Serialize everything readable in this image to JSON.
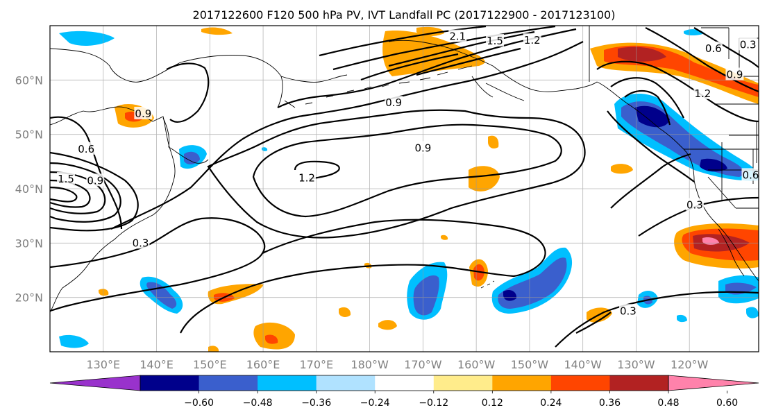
{
  "title": "2017122600 F120 500 hPa PV, IVT Landfall PC (2017122900 - 2017123100)",
  "map": {
    "projection": "PlateCarree",
    "lon_range": [
      120,
      253
    ],
    "lat_range": [
      10,
      70
    ],
    "gridlines": true,
    "lat_ticks": [
      {
        "lat": 60,
        "label": "60°N"
      },
      {
        "lat": 50,
        "label": "50°N"
      },
      {
        "lat": 40,
        "label": "40°N"
      },
      {
        "lat": 30,
        "label": "30°N"
      },
      {
        "lat": 20,
        "label": "20°N"
      }
    ],
    "lon_ticks": [
      {
        "lon": 130,
        "label": "130°E"
      },
      {
        "lon": 140,
        "label": "140°E"
      },
      {
        "lon": 150,
        "label": "150°E"
      },
      {
        "lon": 160,
        "label": "160°E"
      },
      {
        "lon": 170,
        "label": "170°E"
      },
      {
        "lon": 180,
        "label": "180°W"
      },
      {
        "lon": 190,
        "label": "170°W"
      },
      {
        "lon": 200,
        "label": "160°W"
      },
      {
        "lon": 210,
        "label": "150°W"
      },
      {
        "lon": 220,
        "label": "140°W"
      },
      {
        "lon": 230,
        "label": "130°W"
      },
      {
        "lon": 240,
        "label": "120°W"
      }
    ]
  },
  "colorbar": {
    "extend": "both",
    "colors": [
      "#9932cc",
      "#00008b",
      "#3a5fcd",
      "#00bfff",
      "#b0e2ff",
      "#ffffff",
      "#ffec8b",
      "#ffa500",
      "#ff4500",
      "#b22222",
      "#ff82ab"
    ],
    "tick_labels": [
      "−0.60",
      "−0.48",
      "−0.36",
      "−0.24",
      "−0.12",
      "0.12",
      "0.24",
      "0.36",
      "0.48",
      "0.60"
    ]
  },
  "contour_labels": [
    {
      "text": "2.1",
      "lon": 196.5,
      "lat": 68.0
    },
    {
      "text": "1.5",
      "lon": 203.5,
      "lat": 67.2
    },
    {
      "text": "1.2",
      "lon": 210.5,
      "lat": 67.3
    },
    {
      "text": "0.9",
      "lon": 184.5,
      "lat": 55.8
    },
    {
      "text": "0.9",
      "lon": 190.0,
      "lat": 47.5
    },
    {
      "text": "1.2",
      "lon": 168.2,
      "lat": 42.0
    },
    {
      "text": "0.6",
      "lon": 126.8,
      "lat": 47.3
    },
    {
      "text": "1.5",
      "lon": 123.0,
      "lat": 41.8
    },
    {
      "text": "0.9",
      "lon": 128.5,
      "lat": 41.5
    },
    {
      "text": "0.9",
      "lon": 137.5,
      "lat": 53.8
    },
    {
      "text": "0.3",
      "lon": 137.0,
      "lat": 30.0
    },
    {
      "text": "0.3",
      "lon": 228.5,
      "lat": 17.5
    },
    {
      "text": "0.3",
      "lon": 241.0,
      "lat": 37.0
    },
    {
      "text": "0.6",
      "lon": 244.5,
      "lat": 65.8
    },
    {
      "text": "0.9",
      "lon": 248.5,
      "lat": 61.0
    },
    {
      "text": "0.3",
      "lon": 251.0,
      "lat": 66.5
    },
    {
      "text": "1.2",
      "lon": 242.5,
      "lat": 57.5
    },
    {
      "text": "0.6",
      "lon": 251.5,
      "lat": 42.5
    }
  ]
}
